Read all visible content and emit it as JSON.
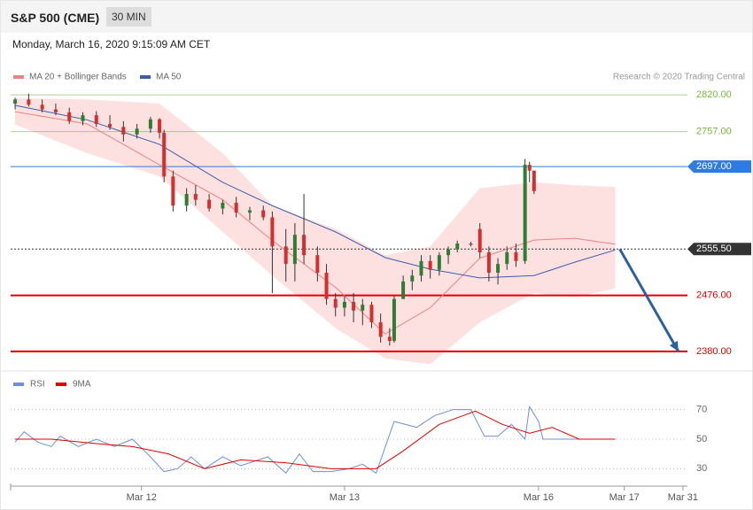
{
  "header": {
    "title": "S&P 500 (CME)",
    "timeframe": "30 MIN",
    "datetime": "Monday, March 16, 2020 9:15:09 AM CET"
  },
  "chart_data": [
    {
      "type": "candlestick",
      "legend": [
        {
          "name": "MA 20 + Bollinger Bands",
          "color": "#f08080"
        },
        {
          "name": "MA 50",
          "color": "#3a5ea8"
        }
      ],
      "credit": "Research © 2020 Trading Central",
      "xlim": [
        0,
        150
      ],
      "ylim": [
        2351,
        2890
      ],
      "up_color": "#2e7d32",
      "down_color": "#d32f2f",
      "x": [
        1,
        4,
        7,
        10,
        13,
        16,
        19,
        22,
        25,
        28,
        31,
        33,
        34,
        36,
        39,
        41,
        44,
        47,
        50,
        53,
        56,
        58,
        61,
        63,
        65,
        68,
        70,
        72,
        74,
        76,
        78,
        80,
        82,
        84,
        85,
        87,
        89,
        91,
        93,
        95,
        97,
        99,
        102,
        104,
        106,
        108,
        110,
        112,
        114,
        115,
        116
      ],
      "open": [
        2805,
        2812,
        2803,
        2795,
        2790,
        2775,
        2785,
        2770,
        2765,
        2752,
        2762,
        2778,
        2755,
        2680,
        2630,
        2650,
        2640,
        2625,
        2635,
        2618,
        2622,
        2610,
        2560,
        2530,
        2580,
        2545,
        2515,
        2470,
        2455,
        2465,
        2450,
        2460,
        2430,
        2405,
        2398,
        2470,
        2500,
        2510,
        2535,
        2520,
        2545,
        2555,
        2565,
        2590,
        2550,
        2515,
        2530,
        2550,
        2535,
        2700,
        2690
      ],
      "high": [
        2815,
        2822,
        2812,
        2805,
        2798,
        2790,
        2792,
        2785,
        2775,
        2770,
        2782,
        2780,
        2760,
        2690,
        2660,
        2665,
        2650,
        2640,
        2645,
        2628,
        2630,
        2620,
        2590,
        2600,
        2650,
        2560,
        2530,
        2480,
        2475,
        2480,
        2470,
        2465,
        2445,
        2420,
        2475,
        2510,
        2520,
        2545,
        2545,
        2550,
        2560,
        2570,
        2568,
        2600,
        2560,
        2540,
        2560,
        2565,
        2710,
        2705,
        2690
      ],
      "low": [
        2795,
        2800,
        2790,
        2785,
        2770,
        2768,
        2765,
        2760,
        2740,
        2745,
        2755,
        2745,
        2670,
        2620,
        2620,
        2630,
        2620,
        2615,
        2610,
        2605,
        2605,
        2480,
        2500,
        2500,
        2530,
        2500,
        2460,
        2440,
        2440,
        2430,
        2425,
        2420,
        2395,
        2390,
        2395,
        2470,
        2485,
        2500,
        2505,
        2510,
        2530,
        2550,
        2560,
        2540,
        2500,
        2495,
        2520,
        2525,
        2530,
        2670,
        2650
      ],
      "close": [
        2812,
        2803,
        2795,
        2790,
        2775,
        2785,
        2770,
        2765,
        2752,
        2762,
        2778,
        2755,
        2680,
        2630,
        2650,
        2640,
        2625,
        2635,
        2618,
        2622,
        2610,
        2560,
        2530,
        2580,
        2545,
        2515,
        2470,
        2455,
        2465,
        2450,
        2460,
        2430,
        2405,
        2398,
        2470,
        2500,
        2510,
        2535,
        2520,
        2545,
        2555,
        2565,
        2563,
        2550,
        2515,
        2530,
        2550,
        2535,
        2700,
        2690,
        2655
      ],
      "overlay_x": [
        1,
        17,
        33,
        47,
        58,
        72,
        83,
        93,
        104,
        116,
        125,
        134
      ],
      "band": {
        "upper": [
          2814,
          2812,
          2805,
          2720,
          2630,
          2590,
          2545,
          2560,
          2660,
          2670,
          2665,
          2662
        ],
        "lower": [
          2769,
          2720,
          2680,
          2585,
          2510,
          2420,
          2368,
          2358,
          2430,
          2480,
          2473,
          2488
        ],
        "color": "#fde0e0"
      },
      "ma20": [
        2791,
        2770,
        2700,
        2640,
        2570,
        2490,
        2410,
        2455,
        2540,
        2571,
        2574,
        2564
      ],
      "ma50": [
        2802,
        2777,
        2735,
        2670,
        2630,
        2585,
        2541,
        2521,
        2506,
        2510,
        2533,
        2554
      ],
      "levels": [
        {
          "value": 2820,
          "label": "2820.00",
          "color": "#7cb342",
          "boxed": false
        },
        {
          "value": 2757,
          "label": "2757.00",
          "color": "#7cb342",
          "boxed": false
        },
        {
          "value": 2697,
          "label": "2697.00",
          "color": "#2f7be0",
          "boxed": true
        },
        {
          "value": 2555.5,
          "label": "2555.50",
          "color": "#333333",
          "boxed": true
        },
        {
          "value": 2476,
          "label": "2476.00",
          "color": "#e00000",
          "boxed": false
        },
        {
          "value": 2380,
          "label": "2380.00",
          "color": "#e00000",
          "boxed": false
        }
      ],
      "arrow": {
        "x": [
          135,
          148
        ],
        "y": [
          2555.5,
          2380
        ],
        "color": "#2c5fa0"
      }
    },
    {
      "type": "line",
      "ylim": [
        20,
        83
      ],
      "xlim": [
        0,
        150
      ],
      "yticks": [
        70,
        50,
        30
      ],
      "xticks": [
        {
          "value": 29,
          "label": "Mar 12"
        },
        {
          "value": 74,
          "label": "Mar 13"
        },
        {
          "value": 117,
          "label": "Mar 16"
        },
        {
          "value": 136,
          "label": "Mar 17"
        },
        {
          "value": 149,
          "label": "Mar 31"
        }
      ],
      "series": [
        {
          "name": "RSI",
          "color": "#6f8fd8",
          "x": [
            1,
            3,
            6,
            9,
            11,
            15,
            19,
            23,
            27,
            31,
            34,
            37,
            40,
            43,
            47,
            51,
            57,
            61,
            64,
            67,
            71,
            75,
            78,
            81,
            85,
            90,
            94,
            98,
            102,
            105,
            108,
            111,
            114,
            115,
            117,
            118,
            126,
            134
          ],
          "values": [
            48,
            55,
            48,
            45,
            52,
            45,
            50,
            45,
            50,
            38,
            28,
            30,
            38,
            30,
            38,
            32,
            38,
            27,
            40,
            28,
            28,
            30,
            33,
            27,
            62,
            58,
            66,
            70,
            70,
            52,
            52,
            60,
            50,
            72,
            62,
            50,
            50,
            50
          ]
        },
        {
          "name": "9MA",
          "color": "#e00000",
          "x": [
            1,
            9,
            19,
            27,
            35,
            43,
            51,
            61,
            71,
            81,
            87,
            95,
            103,
            109,
            115,
            120,
            126,
            134
          ],
          "values": [
            50,
            50,
            47,
            45,
            40,
            30,
            36,
            34,
            30,
            30,
            42,
            60,
            69,
            60,
            54,
            58,
            50,
            50
          ]
        }
      ]
    }
  ]
}
